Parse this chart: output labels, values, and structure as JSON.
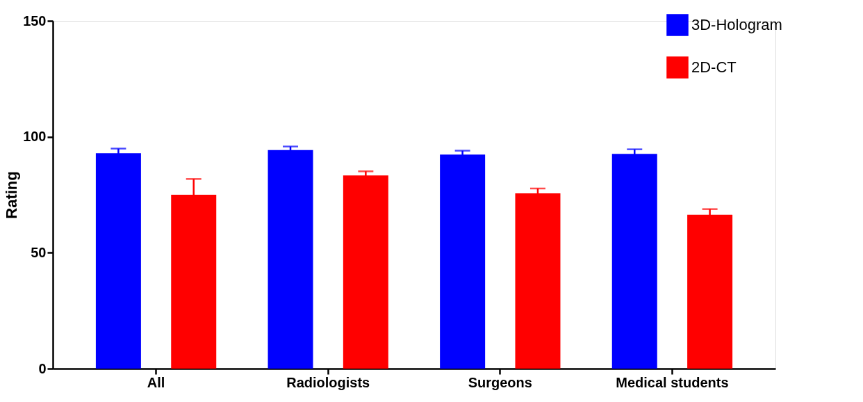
{
  "chart_data": {
    "type": "bar",
    "ylabel": "Rating",
    "categories": [
      "All",
      "Radiologists",
      "Surgeons",
      "Medical students"
    ],
    "series": [
      {
        "name": "3D-Hologram",
        "color": "#0000ff",
        "values": [
          92.9,
          94.3,
          92.3,
          92.6
        ],
        "errors": [
          2.0,
          1.5,
          1.7,
          2.0
        ]
      },
      {
        "name": "2D-CT",
        "color": "#ff0000",
        "values": [
          75.0,
          83.3,
          75.6,
          66.4
        ],
        "errors": [
          6.8,
          1.8,
          2.1,
          2.4
        ]
      }
    ],
    "ylim": [
      0,
      150
    ],
    "yticks": [
      0,
      50,
      100,
      150
    ],
    "grid": false,
    "legend": "top right"
  }
}
